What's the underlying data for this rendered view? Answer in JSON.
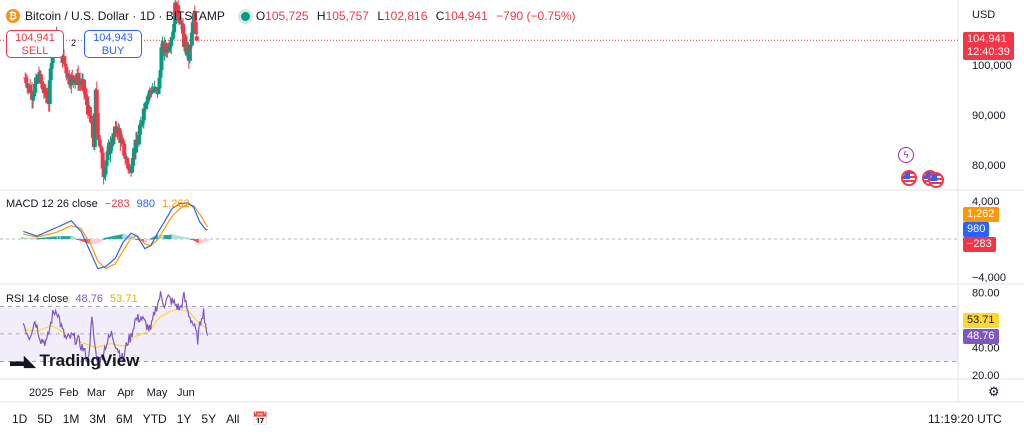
{
  "header": {
    "coin_symbol": "₿",
    "title": "Bitcoin / U.S. Dollar · 1D · BITSTAMP",
    "ohlc": {
      "o_label": "O",
      "o": "105,725",
      "h_label": "H",
      "h": "105,757",
      "l_label": "L",
      "l": "102,816",
      "c_label": "C",
      "c": "104,941",
      "change": "−790 (−0.75%)"
    }
  },
  "trade": {
    "sell_price": "104,941",
    "sell_label": "SELL",
    "buy_price": "104,943",
    "buy_label": "BUY",
    "spread": "2"
  },
  "currency": "USD",
  "last_price": {
    "value": "104,941",
    "countdown": "12:40:39"
  },
  "macd": {
    "legend": "MACD 12 26 close",
    "hist": "−283",
    "macd": "980",
    "signal": "1,262"
  },
  "rsi": {
    "legend": "RSI 14 close",
    "rsi": "48.76",
    "ma": "53.71"
  },
  "brand": "TradingView",
  "timeframes": [
    "1D",
    "5D",
    "1M",
    "3M",
    "6M",
    "YTD",
    "1Y",
    "5Y",
    "All"
  ],
  "clock": "11:19:20 UTC",
  "colors": {
    "up": "#089981",
    "down": "#f23645",
    "macd": "#2962ff",
    "signal": "#ff9800",
    "rsi": "#7e57c2",
    "rsi_ma": "#fdd835"
  },
  "chart_data": [
    {
      "type": "candlestick",
      "title": "Bitcoin / U.S. Dollar · 1D · BITSTAMP",
      "ylim": [
        75000,
        113000
      ],
      "y_ticks": [
        80000,
        90000,
        100000
      ],
      "y_tick_labels": [
        "80,000",
        "90,000",
        "100,000"
      ],
      "x_ticks": [
        "2025",
        "Feb",
        "Mar",
        "Apr",
        "May",
        "Jun"
      ],
      "close_series": [
        {
          "date": "2024-12-20",
          "close": 97500
        },
        {
          "date": "2024-12-27",
          "close": 94200
        },
        {
          "date": "2025-01-03",
          "close": 97800
        },
        {
          "date": "2025-01-08",
          "close": 94600
        },
        {
          "date": "2025-01-13",
          "close": 92800
        },
        {
          "date": "2025-01-17",
          "close": 104500
        },
        {
          "date": "2025-01-21",
          "close": 106200
        },
        {
          "date": "2025-01-27",
          "close": 101500
        },
        {
          "date": "2025-02-03",
          "close": 97200
        },
        {
          "date": "2025-02-10",
          "close": 97500
        },
        {
          "date": "2025-02-17",
          "close": 95800
        },
        {
          "date": "2025-02-25",
          "close": 88500
        },
        {
          "date": "2025-02-28",
          "close": 84300
        },
        {
          "date": "2025-03-02",
          "close": 94200
        },
        {
          "date": "2025-03-04",
          "close": 87100
        },
        {
          "date": "2025-03-10",
          "close": 78600
        },
        {
          "date": "2025-03-17",
          "close": 84100
        },
        {
          "date": "2025-03-24",
          "close": 87500
        },
        {
          "date": "2025-03-31",
          "close": 82500
        },
        {
          "date": "2025-04-06",
          "close": 78400
        },
        {
          "date": "2025-04-09",
          "close": 82500
        },
        {
          "date": "2025-04-14",
          "close": 84600
        },
        {
          "date": "2025-04-22",
          "close": 93400
        },
        {
          "date": "2025-04-28",
          "close": 95000
        },
        {
          "date": "2025-05-05",
          "close": 94700
        },
        {
          "date": "2025-05-08",
          "close": 103000
        },
        {
          "date": "2025-05-14",
          "close": 103500
        },
        {
          "date": "2025-05-20",
          "close": 106800
        },
        {
          "date": "2025-05-22",
          "close": 111500
        },
        {
          "date": "2025-05-27",
          "close": 109400
        },
        {
          "date": "2025-05-31",
          "close": 104600
        },
        {
          "date": "2025-06-05",
          "close": 101500
        },
        {
          "date": "2025-06-08",
          "close": 105800
        },
        {
          "date": "2025-06-10",
          "close": 110200
        },
        {
          "date": "2025-06-12",
          "close": 105700
        },
        {
          "date": "2025-06-13",
          "close": 104941
        }
      ]
    },
    {
      "type": "line",
      "title": "MACD 12 26 close",
      "ylim": [
        -4500,
        4500
      ],
      "y_ticks": [
        4000,
        -4000
      ],
      "y_tick_labels": [
        "4,000",
        "−4,000"
      ],
      "series": [
        {
          "name": "MACD",
          "points": [
            [
              -14,
              800
            ],
            [
              0,
              300
            ],
            [
              20,
              1200
            ],
            [
              35,
              1900
            ],
            [
              45,
              800
            ],
            [
              55,
              -1500
            ],
            [
              62,
              -3100
            ],
            [
              70,
              -2900
            ],
            [
              80,
              -2000
            ],
            [
              88,
              -300
            ],
            [
              96,
              600
            ],
            [
              102,
              300
            ],
            [
              110,
              -1000
            ],
            [
              116,
              -700
            ],
            [
              124,
              800
            ],
            [
              130,
              1800
            ],
            [
              138,
              3200
            ],
            [
              146,
              3700
            ],
            [
              154,
              3800
            ],
            [
              160,
              3300
            ],
            [
              166,
              1800
            ],
            [
              172,
              1000
            ],
            [
              174,
              980
            ]
          ]
        },
        {
          "name": "Signal",
          "points": [
            [
              -14,
              500
            ],
            [
              0,
              200
            ],
            [
              20,
              700
            ],
            [
              35,
              1400
            ],
            [
              45,
              1100
            ],
            [
              55,
              -600
            ],
            [
              62,
              -2300
            ],
            [
              70,
              -3100
            ],
            [
              80,
              -2600
            ],
            [
              88,
              -1200
            ],
            [
              96,
              100
            ],
            [
              102,
              350
            ],
            [
              110,
              -500
            ],
            [
              116,
              -700
            ],
            [
              124,
              0
            ],
            [
              130,
              1100
            ],
            [
              138,
              2400
            ],
            [
              146,
              3200
            ],
            [
              154,
              3600
            ],
            [
              160,
              3500
            ],
            [
              166,
              2600
            ],
            [
              172,
              1600
            ],
            [
              174,
              1262
            ]
          ]
        }
      ]
    },
    {
      "type": "line",
      "title": "RSI 14 close",
      "ylim": [
        18,
        84
      ],
      "y_ticks": [
        80,
        40,
        20
      ],
      "y_tick_labels": [
        "80.00",
        "40.00",
        "20.00"
      ],
      "series": [
        {
          "name": "RSI",
          "points": [
            [
              -14,
              58
            ],
            [
              -8,
              48
            ],
            [
              -2,
              60
            ],
            [
              4,
              46
            ],
            [
              10,
              44
            ],
            [
              16,
              64
            ],
            [
              20,
              68
            ],
            [
              26,
              52
            ],
            [
              30,
              46
            ],
            [
              36,
              48
            ],
            [
              42,
              45
            ],
            [
              48,
              38
            ],
            [
              52,
              30
            ],
            [
              56,
              60
            ],
            [
              60,
              36
            ],
            [
              64,
              28
            ],
            [
              70,
              42
            ],
            [
              76,
              50
            ],
            [
              82,
              40
            ],
            [
              88,
              31
            ],
            [
              92,
              44
            ],
            [
              96,
              48
            ],
            [
              100,
              60
            ],
            [
              106,
              62
            ],
            [
              110,
              58
            ],
            [
              116,
              52
            ],
            [
              120,
              66
            ],
            [
              126,
              78
            ],
            [
              130,
              72
            ],
            [
              134,
              76
            ],
            [
              140,
              72
            ],
            [
              146,
              68
            ],
            [
              150,
              77
            ],
            [
              154,
              66
            ],
            [
              160,
              56
            ],
            [
              164,
              46
            ],
            [
              168,
              64
            ],
            [
              170,
              66
            ],
            [
              174,
              48.76
            ]
          ]
        },
        {
          "name": "RSI MA",
          "points": [
            [
              -14,
              53
            ],
            [
              0,
              52
            ],
            [
              15,
              56
            ],
            [
              30,
              50
            ],
            [
              45,
              44
            ],
            [
              60,
              40
            ],
            [
              75,
              43
            ],
            [
              90,
              41
            ],
            [
              100,
              48
            ],
            [
              115,
              52
            ],
            [
              125,
              62
            ],
            [
              135,
              66
            ],
            [
              145,
              68
            ],
            [
              155,
              66
            ],
            [
              165,
              58
            ],
            [
              174,
              53.71
            ]
          ]
        }
      ]
    }
  ]
}
